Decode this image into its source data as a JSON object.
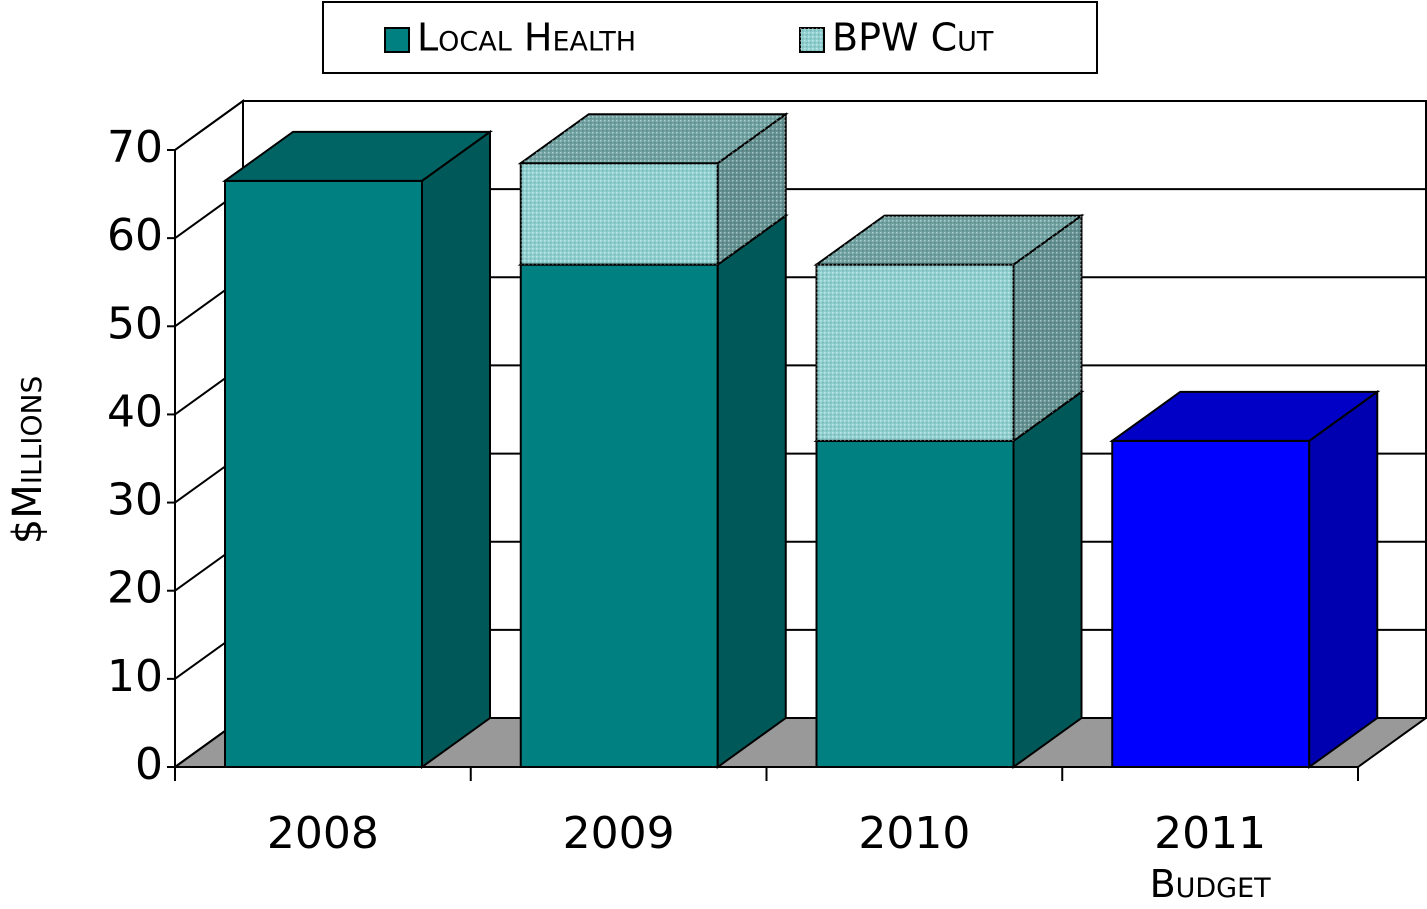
{
  "chart_data": {
    "type": "bar3d_stacked",
    "y_label": "$Millions",
    "categories": [
      "2008",
      "2009",
      "2010",
      "2011 Budget"
    ],
    "series": [
      {
        "name": "Local Health",
        "color": "#008080",
        "values": [
          66.5,
          57,
          37,
          37
        ],
        "point_colors": [
          "#008080",
          "#008080",
          "#008080",
          "#0000ff"
        ]
      },
      {
        "name": "BPW Cut",
        "color": "#8fd0d0",
        "pattern": "dots",
        "values": [
          null,
          11.5,
          20,
          null
        ]
      }
    ],
    "ylim": [
      0,
      70
    ],
    "yticks": [
      0,
      10,
      20,
      30,
      40,
      50,
      60,
      70
    ],
    "grid": true,
    "legend": "top"
  }
}
